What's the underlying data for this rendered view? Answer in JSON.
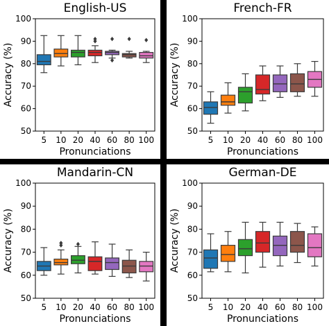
{
  "figure": {
    "palette": [
      "#1f77b4",
      "#ff7f0e",
      "#2ca02c",
      "#d62728",
      "#9467bd",
      "#8c564b",
      "#e377c2"
    ]
  },
  "chart_data": [
    {
      "type": "box",
      "title": "English-US",
      "xlabel": "Pronunciations",
      "ylabel": "Accuracy (%)",
      "categories": [
        "5",
        "10",
        "20",
        "40",
        "60",
        "80",
        "100"
      ],
      "ylim": [
        50,
        100
      ],
      "yticks": [
        50,
        60,
        70,
        80,
        90,
        100
      ],
      "grid": false,
      "boxes": [
        {
          "min": 76,
          "q1": 79.5,
          "median": 81,
          "q3": 84,
          "max": 92.5,
          "outliers": []
        },
        {
          "min": 79,
          "q1": 83,
          "median": 84.5,
          "q3": 86.5,
          "max": 92.5,
          "outliers": []
        },
        {
          "min": 79.5,
          "q1": 83,
          "median": 85,
          "q3": 86,
          "max": 92.5,
          "outliers": []
        },
        {
          "min": 80.5,
          "q1": 83.5,
          "median": 85,
          "q3": 86,
          "max": 88,
          "outliers": [
            90,
            91
          ]
        },
        {
          "min": 82.5,
          "q1": 84,
          "median": 85,
          "q3": 85.5,
          "max": 86,
          "outliers": [
            91,
            81.5
          ]
        },
        {
          "min": 82.5,
          "q1": 83,
          "median": 84,
          "q3": 84.5,
          "max": 85.5,
          "outliers": [
            91
          ]
        },
        {
          "min": 80.5,
          "q1": 82.5,
          "median": 83.5,
          "q3": 85,
          "max": 85.5,
          "outliers": [
            90.5
          ]
        }
      ]
    },
    {
      "type": "box",
      "title": "French-FR",
      "xlabel": "Pronunciations",
      "ylabel": "Accuracy (%)",
      "categories": [
        "5",
        "10",
        "20",
        "40",
        "60",
        "80",
        "100"
      ],
      "ylim": [
        50,
        100
      ],
      "yticks": [
        50,
        60,
        70,
        80,
        90,
        100
      ],
      "grid": false,
      "boxes": [
        {
          "min": 53.5,
          "q1": 57.5,
          "median": 60.5,
          "q3": 63,
          "max": 67.5,
          "outliers": []
        },
        {
          "min": 58,
          "q1": 61.5,
          "median": 63,
          "q3": 66,
          "max": 71.5,
          "outliers": []
        },
        {
          "min": 59,
          "q1": 62.5,
          "median": 67.5,
          "q3": 69.5,
          "max": 75.5,
          "outliers": []
        },
        {
          "min": 63.5,
          "q1": 66.5,
          "median": 68.5,
          "q3": 75,
          "max": 79,
          "outliers": []
        },
        {
          "min": 65,
          "q1": 67.5,
          "median": 71,
          "q3": 75,
          "max": 79,
          "outliers": []
        },
        {
          "min": 65.5,
          "q1": 67.5,
          "median": 71,
          "q3": 75.5,
          "max": 80,
          "outliers": []
        },
        {
          "min": 65.5,
          "q1": 69.5,
          "median": 73,
          "q3": 76.5,
          "max": 81,
          "outliers": []
        }
      ]
    },
    {
      "type": "box",
      "title": "Mandarin-CN",
      "xlabel": "Pronunciations",
      "ylabel": "Accuracy (%)",
      "categories": [
        "5",
        "10",
        "20",
        "40",
        "60",
        "80",
        "100"
      ],
      "ylim": [
        50,
        100
      ],
      "yticks": [
        50,
        60,
        70,
        80,
        90,
        100
      ],
      "grid": false,
      "boxes": [
        {
          "min": 60,
          "q1": 62,
          "median": 64,
          "q3": 66,
          "max": 72,
          "outliers": []
        },
        {
          "min": 60.5,
          "q1": 64.5,
          "median": 65.5,
          "q3": 67,
          "max": 71,
          "outliers": [
            73,
            74
          ]
        },
        {
          "min": 61,
          "q1": 65,
          "median": 66.5,
          "q3": 68.5,
          "max": 72.5,
          "outliers": [
            73.5
          ]
        },
        {
          "min": 60.5,
          "q1": 62,
          "median": 66,
          "q3": 68,
          "max": 74.5,
          "outliers": []
        },
        {
          "min": 59.5,
          "q1": 62.5,
          "median": 65.5,
          "q3": 67.5,
          "max": 73.5,
          "outliers": []
        },
        {
          "min": 59,
          "q1": 61,
          "median": 64,
          "q3": 66.5,
          "max": 71,
          "outliers": []
        },
        {
          "min": 57.5,
          "q1": 61.5,
          "median": 64,
          "q3": 66,
          "max": 70,
          "outliers": []
        }
      ]
    },
    {
      "type": "box",
      "title": "German-DE",
      "xlabel": "Pronunciations",
      "ylabel": "Accuracy (%)",
      "categories": [
        "5",
        "10",
        "20",
        "40",
        "60",
        "80",
        "100"
      ],
      "ylim": [
        50,
        100
      ],
      "yticks": [
        50,
        60,
        70,
        80,
        90,
        100
      ],
      "grid": false,
      "boxes": [
        {
          "min": 61.5,
          "q1": 63,
          "median": 67.5,
          "q3": 71,
          "max": 78,
          "outliers": []
        },
        {
          "min": 61.5,
          "q1": 66,
          "median": 69,
          "q3": 73,
          "max": 79,
          "outliers": []
        },
        {
          "min": 61,
          "q1": 68.5,
          "median": 71.5,
          "q3": 75.5,
          "max": 83,
          "outliers": []
        },
        {
          "min": 63.5,
          "q1": 70,
          "median": 74,
          "q3": 79,
          "max": 83,
          "outliers": []
        },
        {
          "min": 64,
          "q1": 68.5,
          "median": 73,
          "q3": 77,
          "max": 83,
          "outliers": []
        },
        {
          "min": 65.5,
          "q1": 70,
          "median": 73,
          "q3": 79,
          "max": 82.5,
          "outliers": []
        },
        {
          "min": 64,
          "q1": 68,
          "median": 72,
          "q3": 78,
          "max": 81,
          "outliers": []
        }
      ]
    }
  ]
}
